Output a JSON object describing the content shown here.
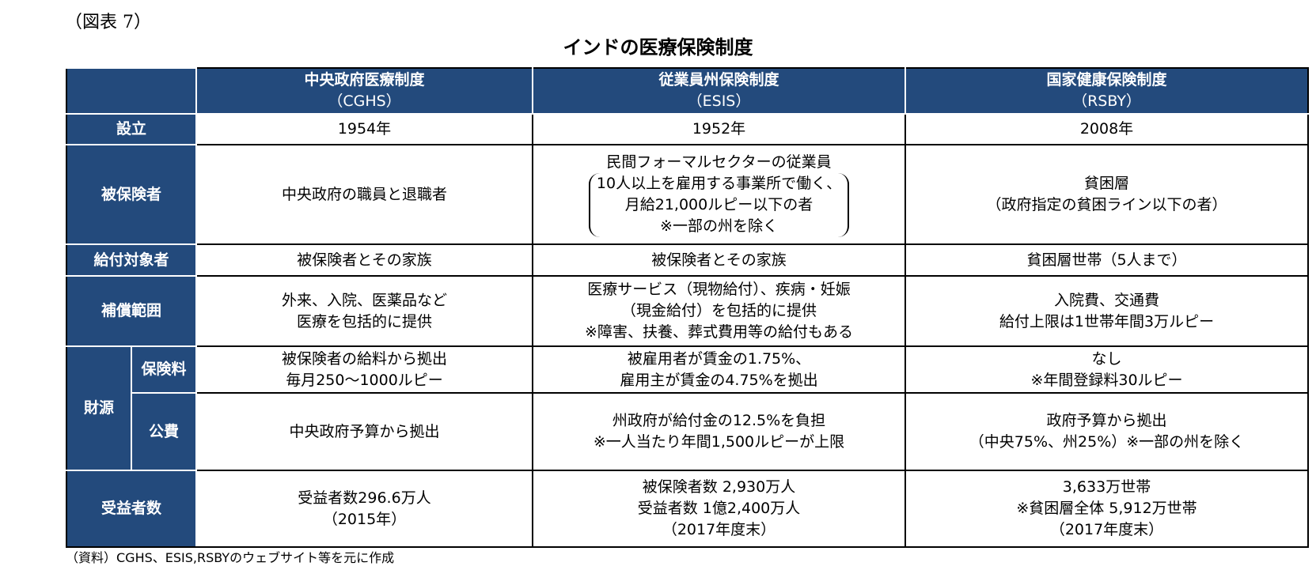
{
  "figure_label": "（図表 7）",
  "title": "インドの医療保険制度",
  "header": [
    {
      "name": "中央政府医療制度",
      "abbr": "（CGHS）"
    },
    {
      "name": "従業員州保険制度",
      "abbr": "（ESIS）"
    },
    {
      "name": "国家健康保険制度",
      "abbr": "（RSBY）"
    }
  ],
  "rows": {
    "established": {
      "label": "設立",
      "cells": [
        [
          "1954年"
        ],
        [
          "1952年"
        ],
        [
          "2008年"
        ]
      ]
    },
    "insured": {
      "label": "被保険者",
      "cells": [
        [
          "中央政府の職員と退職者"
        ],
        [
          "民間フォーマルセクターの従業員",
          "10人以上を雇用する事業所で働く、",
          "月給21,000ルピー以下の者",
          "※一部の州を除く"
        ],
        [
          "貧困層",
          "（政府指定の貧困ライン以下の者）"
        ]
      ]
    },
    "beneficiaries": {
      "label": "給付対象者",
      "cells": [
        [
          "被保険者とその家族"
        ],
        [
          "被保険者とその家族"
        ],
        [
          "貧困層世帯（5人まで）"
        ]
      ]
    },
    "coverage": {
      "label": "補償範囲",
      "cells": [
        [
          "外来、入院、医薬品など",
          "医療を包括的に提供"
        ],
        [
          "医療サービス（現物給付）、疾病・妊娠",
          "（現金給付）を包括的に提供",
          "※障害、扶養、葬式費用等の給付もある"
        ],
        [
          "入院費、交通費",
          "給付上限は1世帯年間3万ルピー"
        ]
      ]
    },
    "funding_label": "財源",
    "premium": {
      "label": "保険料",
      "cells": [
        [
          "被保険者の給料から拠出",
          "毎月250～1000ルピー"
        ],
        [
          "被雇用者が賃金の1.75%、",
          "雇用主が賃金の4.75%を拠出"
        ],
        [
          "なし",
          "※年間登録料30ルピー"
        ]
      ]
    },
    "public": {
      "label": "公費",
      "cells": [
        [
          "中央政府予算から拠出"
        ],
        [
          "州政府が給付金の12.5%を負担",
          "※一人当たり年間1,500ルピーが上限"
        ],
        [
          "政府予算から拠出",
          "（中央75%、州25%）※一部の州を除く"
        ]
      ]
    },
    "recipients": {
      "label": "受益者数",
      "cells": [
        [
          "受益者数296.6万人",
          "（2015年）"
        ],
        [
          "被保険者数 2,930万人",
          "受益者数 1億2,400万人",
          "（2017年度末）"
        ],
        [
          "3,633万世帯",
          "※貧困層全体 5,912万世帯",
          "（2017年度末）"
        ]
      ]
    }
  },
  "footer": "（資料）CGHS、ESIS,RSBYのウェブサイト等を元に作成",
  "colors": {
    "header_bg": "#234a7c",
    "header_text": "#ffffff"
  }
}
